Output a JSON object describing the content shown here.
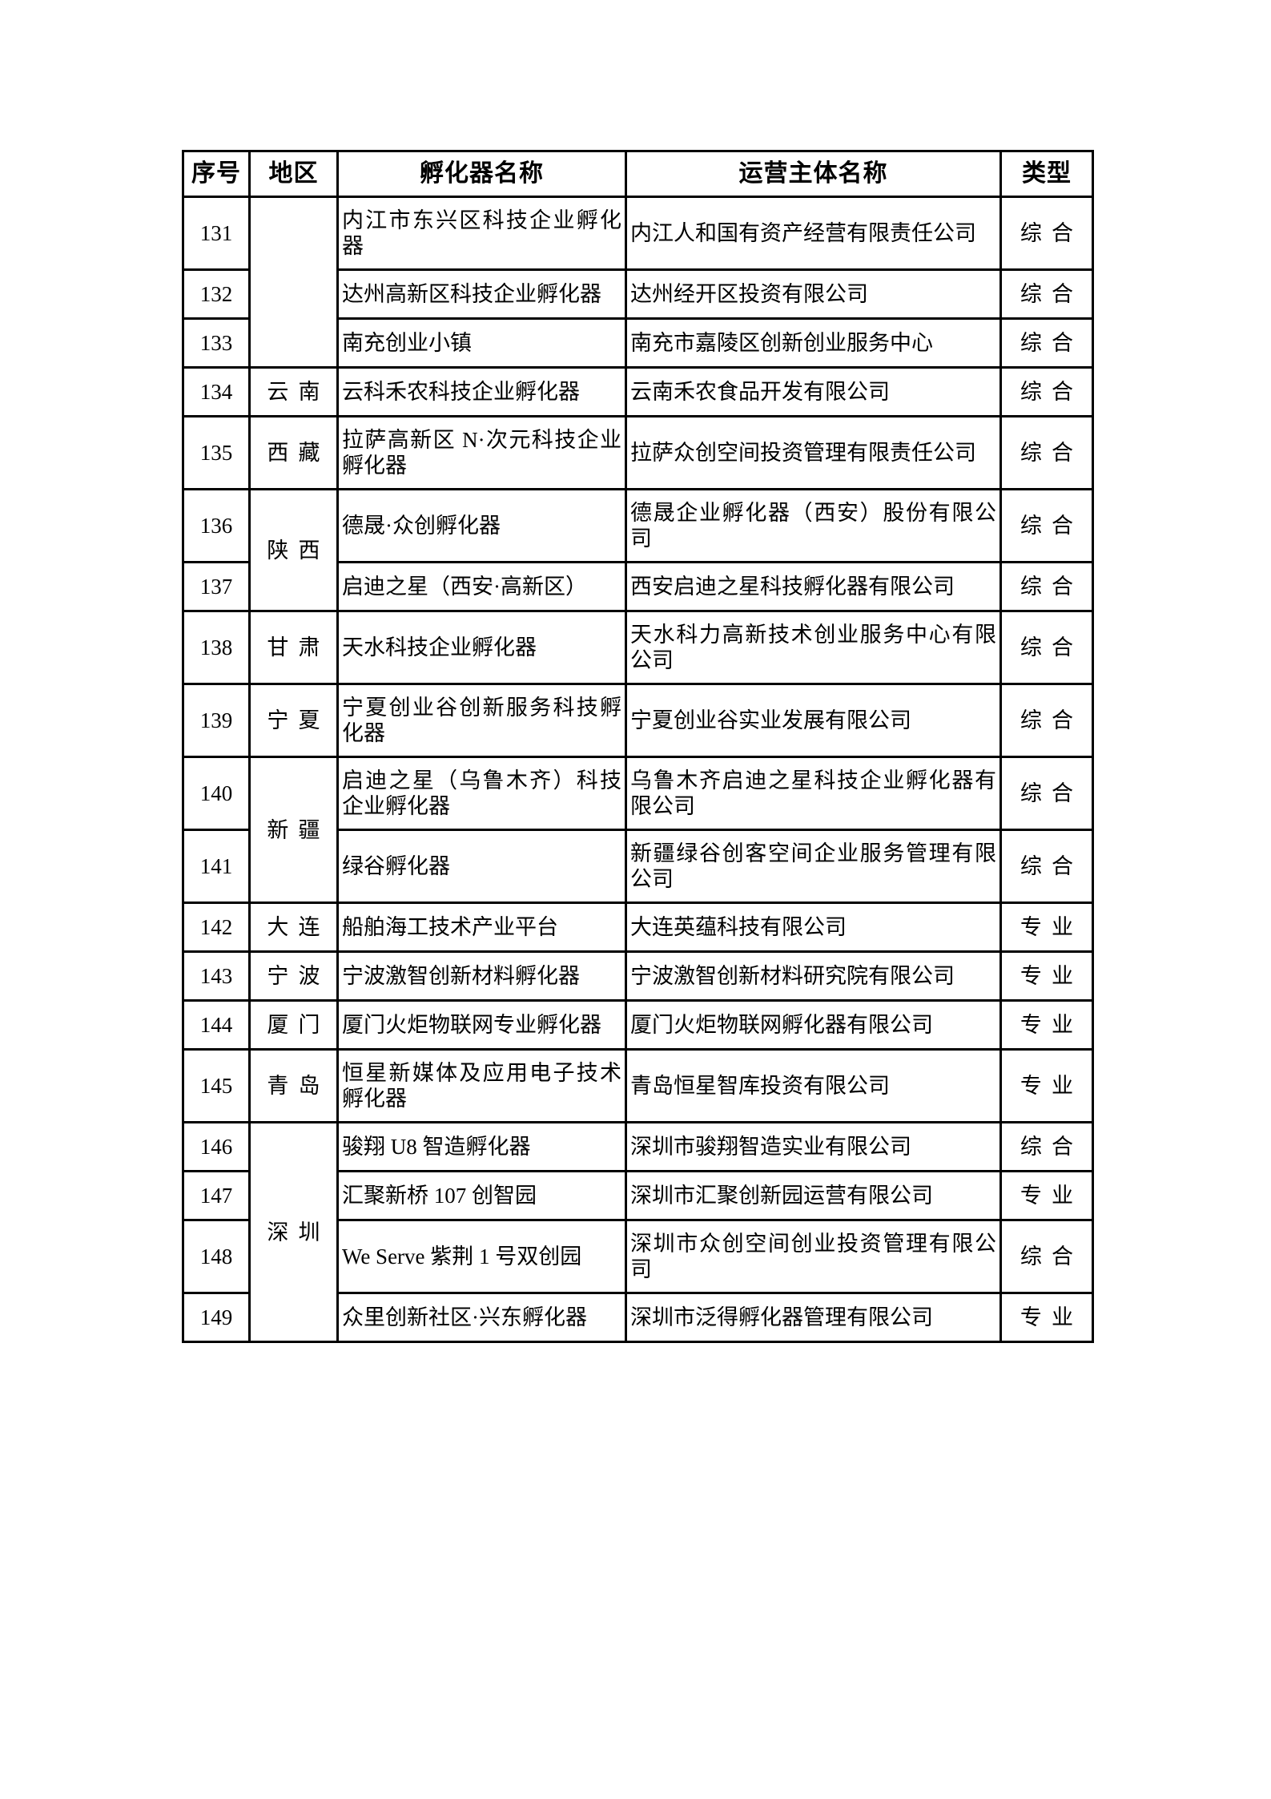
{
  "page": {
    "background": "#ffffff",
    "border_color": "#000000"
  },
  "table": {
    "headers": [
      "序号",
      "地区",
      "孵化器名称",
      "运营主体名称",
      "类型"
    ],
    "rows": [
      {
        "no": "131",
        "region": {
          "text": "",
          "span": 3
        },
        "name": "内江市东兴区科技企业孵化器",
        "operator": "内江人和国有资产经营有限责任公司",
        "type": "综合"
      },
      {
        "no": "132",
        "name": "达州高新区科技企业孵化器",
        "operator": "达州经开区投资有限公司",
        "type": "综合"
      },
      {
        "no": "133",
        "name": "南充创业小镇",
        "operator": "南充市嘉陵区创新创业服务中心",
        "type": "综合"
      },
      {
        "no": "134",
        "region": {
          "text": "云南",
          "span": 1
        },
        "name": "云科禾农科技企业孵化器",
        "operator": "云南禾农食品开发有限公司",
        "type": "综合"
      },
      {
        "no": "135",
        "region": {
          "text": "西藏",
          "span": 1
        },
        "name": "拉萨高新区 N·次元科技企业孵化器",
        "operator": "拉萨众创空间投资管理有限责任公司",
        "type": "综合"
      },
      {
        "no": "136",
        "region": {
          "text": "陕西",
          "span": 2
        },
        "name": "德晟·众创孵化器",
        "operator": "德晟企业孵化器（西安）股份有限公司",
        "type": "综合"
      },
      {
        "no": "137",
        "name": "启迪之星（西安·高新区）",
        "operator": "西安启迪之星科技孵化器有限公司",
        "type": "综合"
      },
      {
        "no": "138",
        "region": {
          "text": "甘肃",
          "span": 1
        },
        "name": "天水科技企业孵化器",
        "operator": "天水科力高新技术创业服务中心有限公司",
        "type": "综合"
      },
      {
        "no": "139",
        "region": {
          "text": "宁夏",
          "span": 1
        },
        "name": "宁夏创业谷创新服务科技孵化器",
        "operator": "宁夏创业谷实业发展有限公司",
        "type": "综合"
      },
      {
        "no": "140",
        "region": {
          "text": "新疆",
          "span": 2
        },
        "name": "启迪之星（乌鲁木齐）科技企业孵化器",
        "operator": "乌鲁木齐启迪之星科技企业孵化器有限公司",
        "type": "综合"
      },
      {
        "no": "141",
        "name": "绿谷孵化器",
        "operator": "新疆绿谷创客空间企业服务管理有限公司",
        "type": "综合"
      },
      {
        "no": "142",
        "region": {
          "text": "大连",
          "span": 1
        },
        "name": "船舶海工技术产业平台",
        "operator": "大连英蕴科技有限公司",
        "type": "专业"
      },
      {
        "no": "143",
        "region": {
          "text": "宁波",
          "span": 1
        },
        "name": "宁波激智创新材料孵化器",
        "operator": "宁波激智创新材料研究院有限公司",
        "type": "专业"
      },
      {
        "no": "144",
        "region": {
          "text": "厦门",
          "span": 1
        },
        "name": "厦门火炬物联网专业孵化器",
        "operator": "厦门火炬物联网孵化器有限公司",
        "type": "专业"
      },
      {
        "no": "145",
        "region": {
          "text": "青岛",
          "span": 1
        },
        "name": "恒星新媒体及应用电子技术孵化器",
        "operator": "青岛恒星智库投资有限公司",
        "type": "专业"
      },
      {
        "no": "146",
        "region": {
          "text": "深圳",
          "span": 4
        },
        "name": "骏翔 U8 智造孵化器",
        "operator": "深圳市骏翔智造实业有限公司",
        "type": "综合"
      },
      {
        "no": "147",
        "name": "汇聚新桥 107 创智园",
        "operator": "深圳市汇聚创新园运营有限公司",
        "type": "专业"
      },
      {
        "no": "148",
        "name": "We Serve 紫荆 1 号双创园",
        "operator": "深圳市众创空间创业投资管理有限公司",
        "type": "综合"
      },
      {
        "no": "149",
        "name": "众里创新社区·兴东孵化器",
        "operator": "深圳市泛得孵化器管理有限公司",
        "type": "专业"
      }
    ]
  }
}
